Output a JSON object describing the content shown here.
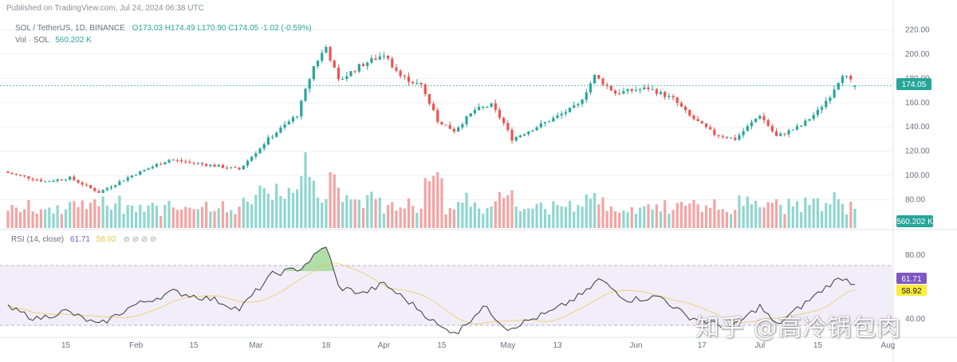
{
  "header": {
    "published": "Published on TradingView.com, Jul 24, 2024 06:38 UTC"
  },
  "legend": {
    "symbol": "SOL / TetherUS, 1D, BINANCE",
    "ohlc": "O173.03 H174.49 L170.90 C174.05 -1.02 (-0.59%)",
    "vol_label": "Vol · SOL",
    "vol_value": "560.202 K",
    "rsi_label": "RSI (14, close)",
    "rsi_value": "61.71",
    "rsi_ma_value": "58.92",
    "dots": "⊘ ⊘ ⊘ ⊘"
  },
  "badges": {
    "price": "174.05",
    "volume": "560.202 K",
    "rsi": "61.71",
    "rsi_ma": "58.92"
  },
  "colors": {
    "up": "#26a69a",
    "down": "#ef5350",
    "vol_up": "#8fd6cf",
    "vol_down": "#f5a3a2",
    "rsi_line": "#383838",
    "rsi_ma": "#f0c75e",
    "rsi_band": "#f1eef9",
    "price_badge": "#26a69a",
    "rsi_badge": "#7e57c2",
    "rsi_ma_badge": "#ffeb3b"
  },
  "watermark": "知乎 @高冷锅包肉",
  "chart_data": [
    {
      "type": "candlestick",
      "title": "SOL / TetherUS, 1D, BINANCE",
      "y_axis_ticks": [
        "220.00",
        "200.00",
        "180.00",
        "160.00",
        "140.00",
        "120.00",
        "100.00",
        "80.00"
      ],
      "ylim": [
        75,
        225
      ],
      "x_tick_labels": [
        "15",
        "Feb",
        "15",
        "Mar",
        "18",
        "Apr",
        "15",
        "May",
        "13",
        "Jun",
        "17",
        "Jul",
        "15",
        "Aug"
      ],
      "last": {
        "open": 173.03,
        "high": 174.49,
        "low": 170.9,
        "close": 174.05,
        "change": -1.02,
        "change_pct": -0.59
      },
      "close_path": [
        {
          "date": "2024-01-01",
          "close": 102
        },
        {
          "date": "2024-01-10",
          "close": 95
        },
        {
          "date": "2024-01-16",
          "close": 98
        },
        {
          "date": "2024-01-23",
          "close": 86
        },
        {
          "date": "2024-01-31",
          "close": 100
        },
        {
          "date": "2024-02-09",
          "close": 113
        },
        {
          "date": "2024-02-20",
          "close": 108
        },
        {
          "date": "2024-02-26",
          "close": 105
        },
        {
          "date": "2024-03-04",
          "close": 130
        },
        {
          "date": "2024-03-11",
          "close": 150
        },
        {
          "date": "2024-03-15",
          "close": 190
        },
        {
          "date": "2024-03-18",
          "close": 206
        },
        {
          "date": "2024-03-21",
          "close": 178
        },
        {
          "date": "2024-03-26",
          "close": 190
        },
        {
          "date": "2024-04-01",
          "close": 200
        },
        {
          "date": "2024-04-05",
          "close": 182
        },
        {
          "date": "2024-04-10",
          "close": 174
        },
        {
          "date": "2024-04-14",
          "close": 145
        },
        {
          "date": "2024-04-18",
          "close": 137
        },
        {
          "date": "2024-04-23",
          "close": 154
        },
        {
          "date": "2024-04-27",
          "close": 158
        },
        {
          "date": "2024-04-30",
          "close": 143
        },
        {
          "date": "2024-05-02",
          "close": 130
        },
        {
          "date": "2024-05-12",
          "close": 147
        },
        {
          "date": "2024-05-18",
          "close": 158
        },
        {
          "date": "2024-05-22",
          "close": 182
        },
        {
          "date": "2024-05-27",
          "close": 168
        },
        {
          "date": "2024-06-04",
          "close": 172
        },
        {
          "date": "2024-06-10",
          "close": 163
        },
        {
          "date": "2024-06-14",
          "close": 149
        },
        {
          "date": "2024-06-20",
          "close": 134
        },
        {
          "date": "2024-06-25",
          "close": 130
        },
        {
          "date": "2024-07-01",
          "close": 150
        },
        {
          "date": "2024-07-05",
          "close": 132
        },
        {
          "date": "2024-07-11",
          "close": 141
        },
        {
          "date": "2024-07-15",
          "close": 153
        },
        {
          "date": "2024-07-18",
          "close": 166
        },
        {
          "date": "2024-07-21",
          "close": 184
        },
        {
          "date": "2024-07-24",
          "close": 174.05
        }
      ]
    },
    {
      "type": "bar",
      "title": "Vol · SOL",
      "last_value": "560.202 K"
    },
    {
      "type": "line",
      "title": "RSI (14, close)",
      "y_axis_ticks": [
        "80.00",
        "40.00"
      ],
      "ylim": [
        30,
        90
      ],
      "band": [
        30,
        70
      ],
      "rsi_value": 61.71,
      "ma_value": 58.92,
      "rsi_path": [
        {
          "date": "2024-01-01",
          "rsi": 47
        },
        {
          "date": "2024-01-08",
          "rsi": 40
        },
        {
          "date": "2024-01-15",
          "rsi": 45
        },
        {
          "date": "2024-01-23",
          "rsi": 36
        },
        {
          "date": "2024-01-31",
          "rsi": 48
        },
        {
          "date": "2024-02-10",
          "rsi": 57
        },
        {
          "date": "2024-02-20",
          "rsi": 52
        },
        {
          "date": "2024-02-26",
          "rsi": 46
        },
        {
          "date": "2024-03-05",
          "rsi": 68
        },
        {
          "date": "2024-03-12",
          "rsi": 72
        },
        {
          "date": "2024-03-18",
          "rsi": 86
        },
        {
          "date": "2024-03-21",
          "rsi": 60
        },
        {
          "date": "2024-03-27",
          "rsi": 56
        },
        {
          "date": "2024-04-01",
          "rsi": 62
        },
        {
          "date": "2024-04-09",
          "rsi": 47
        },
        {
          "date": "2024-04-15",
          "rsi": 34
        },
        {
          "date": "2024-04-19",
          "rsi": 32
        },
        {
          "date": "2024-04-25",
          "rsi": 48
        },
        {
          "date": "2024-05-01",
          "rsi": 34
        },
        {
          "date": "2024-05-12",
          "rsi": 45
        },
        {
          "date": "2024-05-20",
          "rsi": 57
        },
        {
          "date": "2024-05-23",
          "rsi": 65
        },
        {
          "date": "2024-05-30",
          "rsi": 52
        },
        {
          "date": "2024-06-07",
          "rsi": 54
        },
        {
          "date": "2024-06-13",
          "rsi": 42
        },
        {
          "date": "2024-06-24",
          "rsi": 34
        },
        {
          "date": "2024-07-01",
          "rsi": 48
        },
        {
          "date": "2024-07-05",
          "rsi": 36
        },
        {
          "date": "2024-07-12",
          "rsi": 50
        },
        {
          "date": "2024-07-18",
          "rsi": 62
        },
        {
          "date": "2024-07-21",
          "rsi": 66
        },
        {
          "date": "2024-07-24",
          "rsi": 61.71
        }
      ]
    }
  ]
}
